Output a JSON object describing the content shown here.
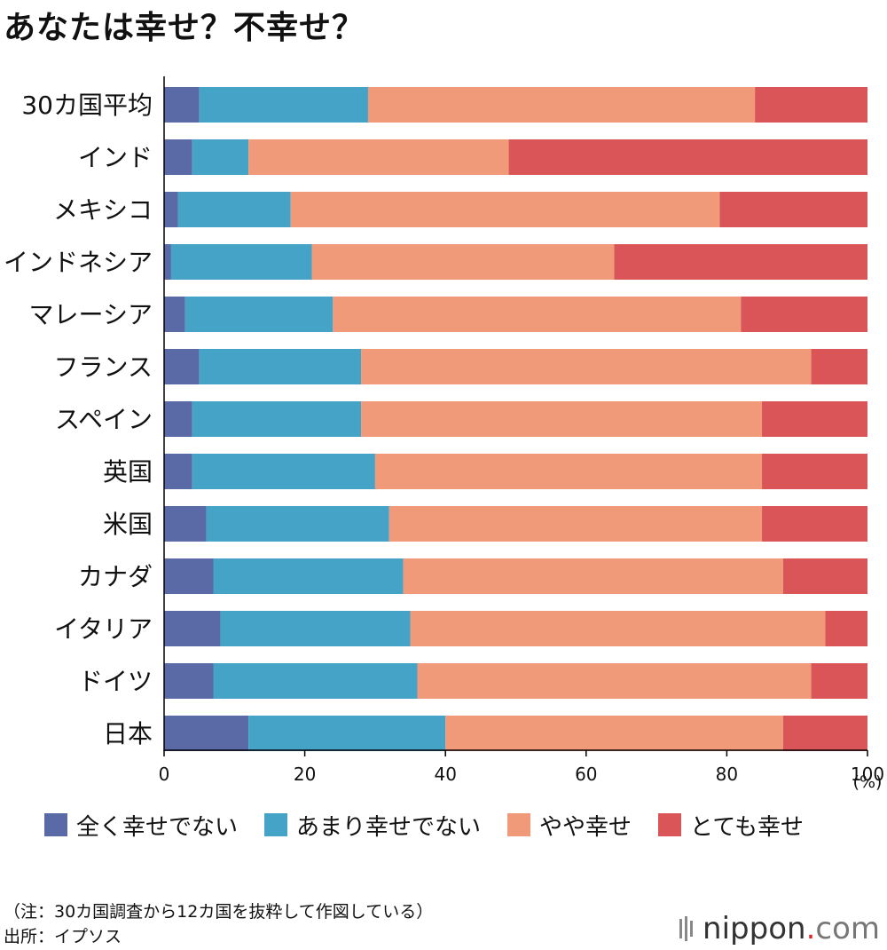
{
  "header": {
    "title": "あなたは幸せ？不幸せ？"
  },
  "chart_data": {
    "type": "bar",
    "orientation": "horizontal",
    "stacked": true,
    "categories": [
      "30カ国平均",
      "インド",
      "メキシコ",
      "インドネシア",
      "マレーシア",
      "フランス",
      "スペイン",
      "英国",
      "米国",
      "カナダ",
      "イタリア",
      "ドイツ",
      "日本"
    ],
    "series": [
      {
        "name": "全く幸せでない",
        "color": "#5a6aa6",
        "values": [
          5,
          4,
          2,
          1,
          3,
          5,
          4,
          4,
          6,
          7,
          8,
          7,
          12
        ]
      },
      {
        "name": "あまり幸せでない",
        "color": "#44a3c6",
        "values": [
          24,
          8,
          16,
          20,
          21,
          23,
          24,
          26,
          26,
          27,
          27,
          29,
          28
        ]
      },
      {
        "name": "やや幸せ",
        "color": "#f09a7a",
        "values": [
          55,
          37,
          61,
          43,
          58,
          64,
          57,
          55,
          53,
          54,
          59,
          56,
          48
        ]
      },
      {
        "name": "とても幸せ",
        "color": "#d95557",
        "values": [
          16,
          51,
          21,
          36,
          18,
          8,
          15,
          15,
          15,
          12,
          6,
          8,
          12
        ]
      }
    ],
    "xlim": [
      0,
      100
    ],
    "xticks": [
      "0",
      "20",
      "40",
      "60",
      "80",
      "100"
    ],
    "xunit": "(%)",
    "legend_position": "bottom"
  },
  "footer": {
    "note": "（注：30カ国調査から12カ国を抜粋して作図している）",
    "source": "出所：イプソス",
    "brand_main": "nippon",
    "brand_dot": ".",
    "brand_com": "com"
  }
}
